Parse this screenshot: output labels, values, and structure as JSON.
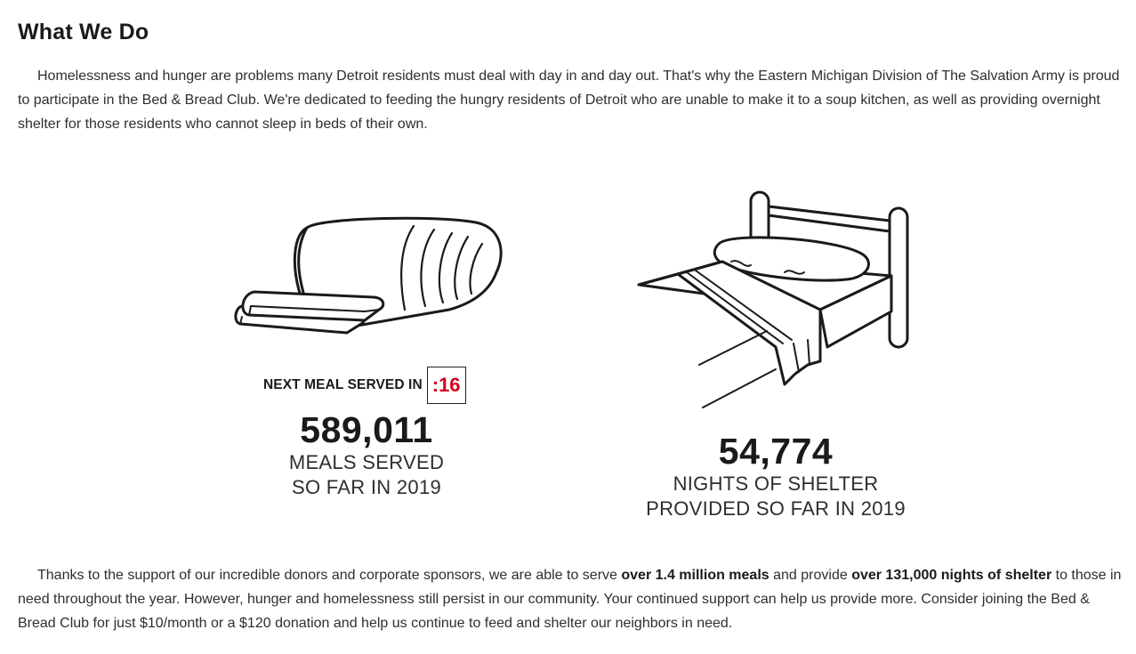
{
  "section": {
    "title": "What We Do"
  },
  "intro": {
    "text": "Homelessness and hunger are problems many Detroit residents must deal with day in and day out. That's why the Eastern Michigan Division of The Salvation Army is proud to participate in the Bed & Bread Club. We're dedicated to feeding the hungry residents of Detroit who are unable to make it to a soup kitchen, as well as providing overnight shelter for those residents who cannot sleep in beds of their own."
  },
  "meals": {
    "icon": "bread-loaf-icon",
    "countdown_label": "NEXT MEAL SERVED IN",
    "countdown_value": ":16",
    "countdown_color": "#d0021b",
    "count": "589,011",
    "caption_line1": "MEALS SERVED",
    "caption_line2": "SO FAR IN 2019"
  },
  "shelter": {
    "icon": "bed-icon",
    "count": "54,774",
    "caption_line1": "NIGHTS OF SHELTER",
    "caption_line2": "PROVIDED SO FAR IN 2019"
  },
  "outro": {
    "part1": "Thanks to the support of our incredible donors and corporate sponsors, we are able to serve ",
    "bold1": "over 1.4 million meals",
    "part2": " and provide ",
    "bold2": "over 131,000 nights of shelter",
    "part3": " to those in need throughout the year. However, hunger and homelessness still persist in our community. Your continued support can help us provide more. Consider joining the Bed & Bread Club for just $10/month or a $120 donation and help us continue to feed and shelter our neighbors in need."
  }
}
